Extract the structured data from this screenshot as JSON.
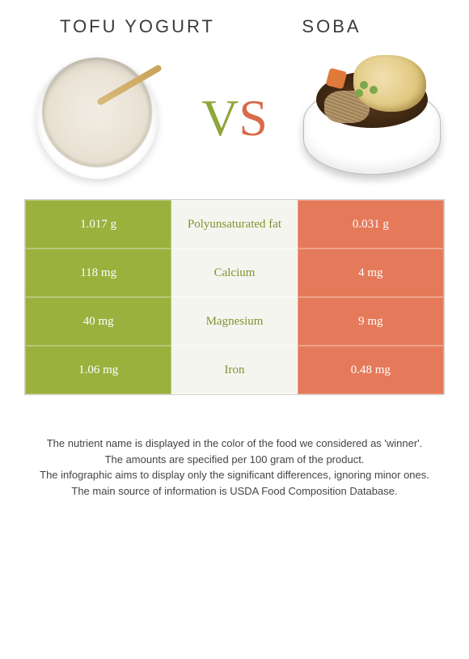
{
  "header": {
    "left_title": "Tofu yogurt",
    "right_title": "Soba",
    "vs_v": "V",
    "vs_s": "S"
  },
  "colors": {
    "left_cell": "#9ab13e",
    "right_cell": "#e57a5a",
    "mid_cell": "#f5f5f0",
    "winner_left_text": "#7e9430",
    "winner_right_text": "#d96a4a",
    "footnote_text": "#444444"
  },
  "table": {
    "rows": [
      {
        "left": "1.017 g",
        "mid": "Polyunsaturated fat",
        "right": "0.031 g",
        "winner": "left"
      },
      {
        "left": "118 mg",
        "mid": "Calcium",
        "right": "4 mg",
        "winner": "left"
      },
      {
        "left": "40 mg",
        "mid": "Magnesium",
        "right": "9 mg",
        "winner": "left"
      },
      {
        "left": "1.06 mg",
        "mid": "Iron",
        "right": "0.48 mg",
        "winner": "left"
      }
    ]
  },
  "footnotes": {
    "line1": "The nutrient name is displayed in the color of the food we considered as 'winner'.",
    "line2": "The amounts are specified per 100 gram of the product.",
    "line3": "The infographic aims to display only the significant differences, ignoring minor ones.",
    "line4": "The main source of information is USDA Food Composition Database."
  }
}
